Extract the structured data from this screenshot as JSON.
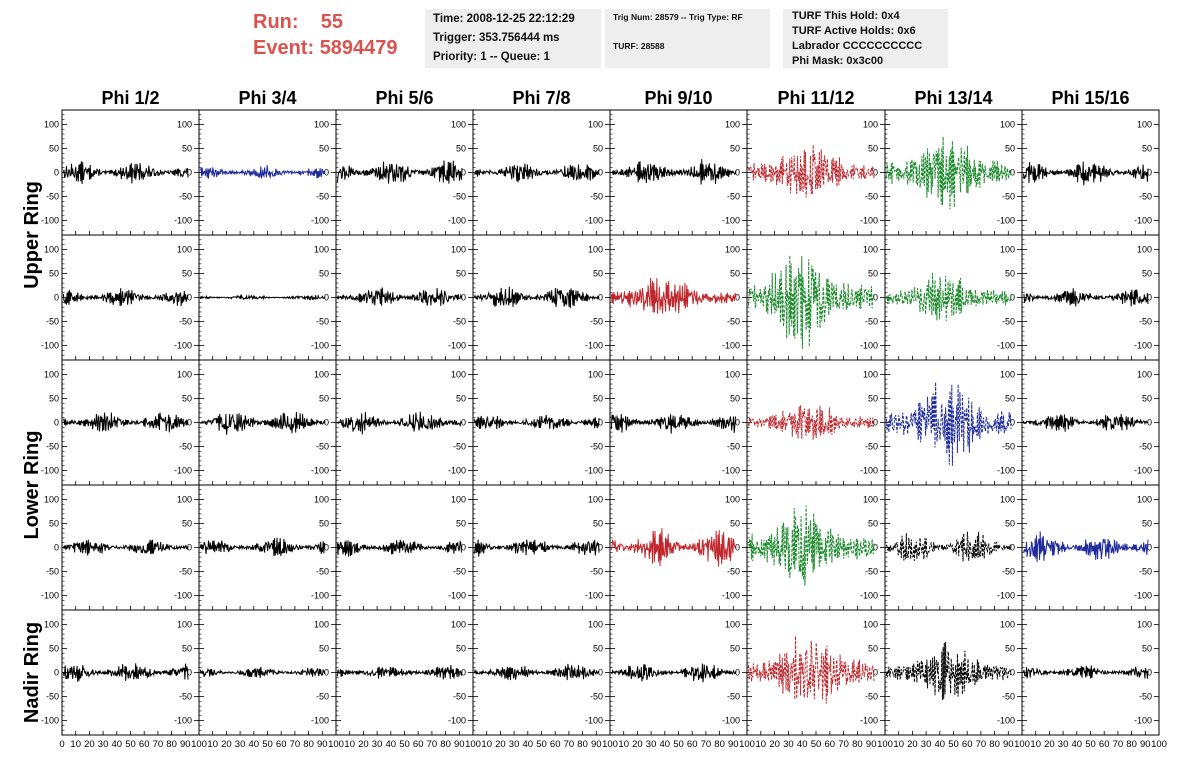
{
  "header": {
    "run_label": "Run:",
    "run_value": "55",
    "event_label": "Event:",
    "event_value": "5894479"
  },
  "info_boxes": {
    "time_line": "Time: 2008-12-25 22:12:29",
    "trigger_line": "Trigger: 353.756444 ms",
    "priority_line": "Priority: 1 -- Queue: 1",
    "trig_num_line": "Trig Num: 28579 -- Trig Type: RF",
    "turf_line": "TURF: 28588",
    "turf_hold_line": "TURF This Hold: 0x4",
    "turf_active_line": "TURF Active Holds: 0x6",
    "labrador_line": "Labrador CCCCCCCCCC",
    "phi_mask_line": "Phi Mask: 0x3c00"
  },
  "chart_data": {
    "type": "line",
    "columns": [
      "Phi 1/2",
      "Phi 3/4",
      "Phi 5/6",
      "Phi 7/8",
      "Phi 9/10",
      "Phi 11/12",
      "Phi 13/14",
      "Phi 15/16"
    ],
    "ring_labels": [
      "Upper Ring",
      "Lower Ring",
      "Nadir Ring"
    ],
    "ring_row_groups": [
      [
        0,
        1
      ],
      [
        2,
        3
      ],
      [
        4,
        4
      ]
    ],
    "xlim": [
      0,
      100
    ],
    "ylim": [
      -130,
      130
    ],
    "x_ticks": [
      0,
      10,
      20,
      30,
      40,
      50,
      60,
      70,
      80,
      90,
      100
    ],
    "y_ticks": [
      -100,
      -50,
      0,
      50,
      100
    ],
    "colors": {
      "black": "#000000",
      "blue": "#1f2a9c",
      "red": "#c0282d",
      "green": "#1a8a2a"
    },
    "panels": [
      {
        "row": 0,
        "col": 0,
        "color": "black",
        "amplitude": 22,
        "dashed": false
      },
      {
        "row": 0,
        "col": 1,
        "color": "blue",
        "amplitude": 15,
        "dashed": false
      },
      {
        "row": 0,
        "col": 2,
        "color": "black",
        "amplitude": 28,
        "dashed": false
      },
      {
        "row": 0,
        "col": 3,
        "color": "black",
        "amplitude": 22,
        "dashed": false
      },
      {
        "row": 0,
        "col": 4,
        "color": "black",
        "amplitude": 25,
        "dashed": false
      },
      {
        "row": 0,
        "col": 5,
        "color": "red",
        "amplitude": 70,
        "dashed": true
      },
      {
        "row": 0,
        "col": 6,
        "color": "green",
        "amplitude": 85,
        "dashed": true
      },
      {
        "row": 0,
        "col": 7,
        "color": "black",
        "amplitude": 25,
        "dashed": false
      },
      {
        "row": 1,
        "col": 0,
        "color": "black",
        "amplitude": 20,
        "dashed": false
      },
      {
        "row": 1,
        "col": 1,
        "color": "black",
        "amplitude": 5,
        "dashed": false
      },
      {
        "row": 1,
        "col": 2,
        "color": "black",
        "amplitude": 22,
        "dashed": false
      },
      {
        "row": 1,
        "col": 3,
        "color": "black",
        "amplitude": 25,
        "dashed": false
      },
      {
        "row": 1,
        "col": 4,
        "color": "red",
        "amplitude": 50,
        "dashed": false
      },
      {
        "row": 1,
        "col": 5,
        "color": "green",
        "amplitude": 110,
        "dashed": true
      },
      {
        "row": 1,
        "col": 6,
        "color": "green",
        "amplitude": 60,
        "dashed": true
      },
      {
        "row": 1,
        "col": 7,
        "color": "black",
        "amplitude": 20,
        "dashed": false
      },
      {
        "row": 2,
        "col": 0,
        "color": "black",
        "amplitude": 22,
        "dashed": false
      },
      {
        "row": 2,
        "col": 1,
        "color": "black",
        "amplitude": 25,
        "dashed": false
      },
      {
        "row": 2,
        "col": 2,
        "color": "black",
        "amplitude": 25,
        "dashed": false
      },
      {
        "row": 2,
        "col": 3,
        "color": "black",
        "amplitude": 18,
        "dashed": false
      },
      {
        "row": 2,
        "col": 4,
        "color": "black",
        "amplitude": 22,
        "dashed": false
      },
      {
        "row": 2,
        "col": 5,
        "color": "red",
        "amplitude": 45,
        "dashed": true
      },
      {
        "row": 2,
        "col": 6,
        "color": "blue",
        "amplitude": 100,
        "dashed": true
      },
      {
        "row": 2,
        "col": 7,
        "color": "black",
        "amplitude": 20,
        "dashed": false
      },
      {
        "row": 3,
        "col": 0,
        "color": "black",
        "amplitude": 18,
        "dashed": false
      },
      {
        "row": 3,
        "col": 1,
        "color": "black",
        "amplitude": 20,
        "dashed": false
      },
      {
        "row": 3,
        "col": 2,
        "color": "black",
        "amplitude": 18,
        "dashed": false
      },
      {
        "row": 3,
        "col": 3,
        "color": "black",
        "amplitude": 20,
        "dashed": false
      },
      {
        "row": 3,
        "col": 4,
        "color": "red",
        "amplitude": 40,
        "dashed": false
      },
      {
        "row": 3,
        "col": 5,
        "color": "green",
        "amplitude": 95,
        "dashed": true
      },
      {
        "row": 3,
        "col": 6,
        "color": "black",
        "amplitude": 35,
        "dashed": true
      },
      {
        "row": 3,
        "col": 7,
        "color": "blue",
        "amplitude": 30,
        "dashed": false
      },
      {
        "row": 4,
        "col": 0,
        "color": "black",
        "amplitude": 22,
        "dashed": false
      },
      {
        "row": 4,
        "col": 1,
        "color": "black",
        "amplitude": 12,
        "dashed": false
      },
      {
        "row": 4,
        "col": 2,
        "color": "black",
        "amplitude": 15,
        "dashed": false
      },
      {
        "row": 4,
        "col": 3,
        "color": "black",
        "amplitude": 18,
        "dashed": false
      },
      {
        "row": 4,
        "col": 4,
        "color": "black",
        "amplitude": 20,
        "dashed": false
      },
      {
        "row": 4,
        "col": 5,
        "color": "red",
        "amplitude": 90,
        "dashed": true
      },
      {
        "row": 4,
        "col": 6,
        "color": "black",
        "amplitude": 60,
        "dashed": true
      },
      {
        "row": 4,
        "col": 7,
        "color": "black",
        "amplitude": 15,
        "dashed": false
      }
    ]
  }
}
